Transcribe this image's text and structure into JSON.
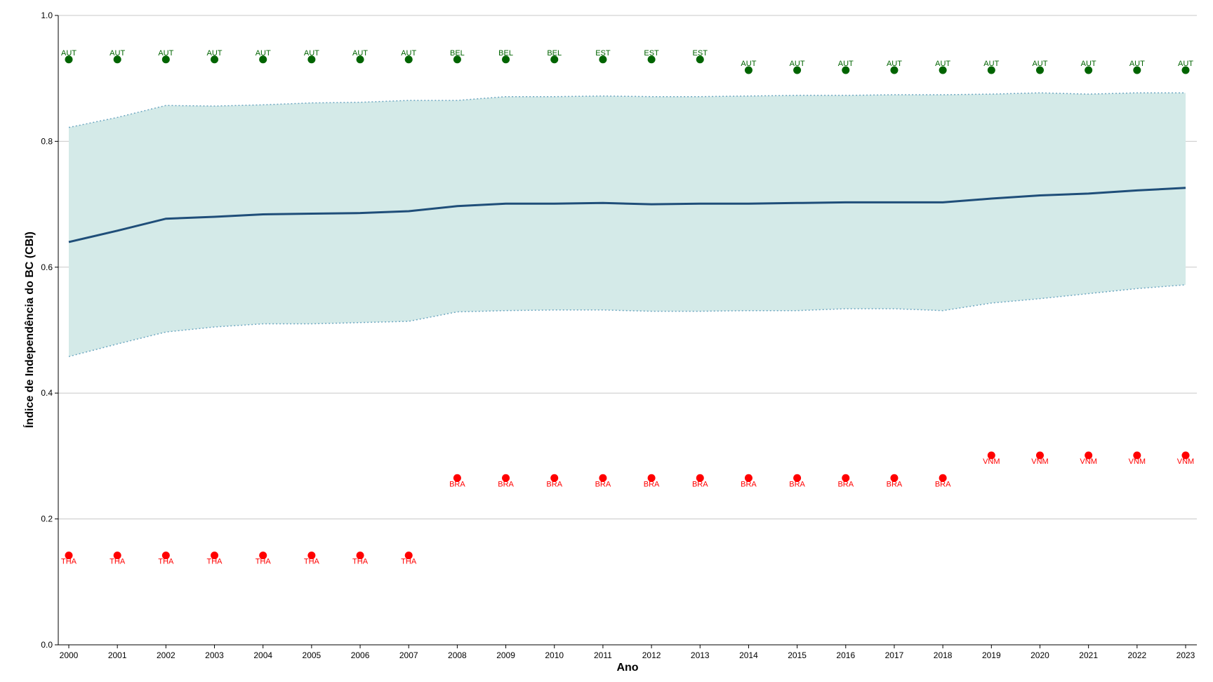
{
  "chart_data": {
    "type": "line",
    "title": "",
    "xlabel": "Ano",
    "ylabel": "Índice de Independência do BC (CBI)",
    "ylim": [
      0,
      1
    ],
    "yticks": [
      "0.0",
      "0.2",
      "0.4",
      "0.6",
      "0.8",
      "1.0"
    ],
    "grid": "horizontal",
    "x": [
      2000,
      2001,
      2002,
      2003,
      2004,
      2005,
      2006,
      2007,
      2008,
      2009,
      2010,
      2011,
      2012,
      2013,
      2014,
      2015,
      2016,
      2017,
      2018,
      2019,
      2020,
      2021,
      2022,
      2023
    ],
    "series": [
      {
        "role": "mean",
        "values": [
          0.64,
          0.658,
          0.677,
          0.68,
          0.684,
          0.685,
          0.686,
          0.689,
          0.697,
          0.701,
          0.701,
          0.702,
          0.7,
          0.701,
          0.701,
          0.702,
          0.703,
          0.703,
          0.703,
          0.709,
          0.714,
          0.717,
          0.722,
          0.726
        ]
      },
      {
        "role": "band-upper",
        "values": [
          0.822,
          0.838,
          0.857,
          0.856,
          0.858,
          0.861,
          0.862,
          0.865,
          0.865,
          0.871,
          0.871,
          0.872,
          0.871,
          0.871,
          0.872,
          0.873,
          0.873,
          0.874,
          0.874,
          0.875,
          0.877,
          0.875,
          0.877,
          0.877
        ]
      },
      {
        "role": "band-lower",
        "values": [
          0.458,
          0.478,
          0.497,
          0.505,
          0.51,
          0.51,
          0.512,
          0.514,
          0.529,
          0.531,
          0.532,
          0.532,
          0.53,
          0.53,
          0.531,
          0.531,
          0.534,
          0.534,
          0.531,
          0.543,
          0.55,
          0.558,
          0.566,
          0.572
        ]
      },
      {
        "role": "max",
        "values": [
          0.93,
          0.93,
          0.93,
          0.93,
          0.93,
          0.93,
          0.93,
          0.93,
          0.93,
          0.93,
          0.93,
          0.93,
          0.93,
          0.93,
          0.913,
          0.913,
          0.913,
          0.913,
          0.913,
          0.913,
          0.913,
          0.913,
          0.913,
          0.913
        ],
        "labels": [
          "AUT",
          "AUT",
          "AUT",
          "AUT",
          "AUT",
          "AUT",
          "AUT",
          "AUT",
          "BEL",
          "BEL",
          "BEL",
          "EST",
          "EST",
          "EST",
          "AUT",
          "AUT",
          "AUT",
          "AUT",
          "AUT",
          "AUT",
          "AUT",
          "AUT",
          "AUT",
          "AUT"
        ]
      },
      {
        "role": "min",
        "values": [
          0.142,
          0.142,
          0.142,
          0.142,
          0.142,
          0.142,
          0.142,
          0.142,
          0.265,
          0.265,
          0.265,
          0.265,
          0.265,
          0.265,
          0.265,
          0.265,
          0.265,
          0.265,
          0.265,
          0.301,
          0.301,
          0.301,
          0.301,
          0.301
        ],
        "labels": [
          "THA",
          "THA",
          "THA",
          "THA",
          "THA",
          "THA",
          "THA",
          "THA",
          "BRA",
          "BRA",
          "BRA",
          "BRA",
          "BRA",
          "BRA",
          "BRA",
          "BRA",
          "BRA",
          "BRA",
          "BRA",
          "VNM",
          "VNM",
          "VNM",
          "VNM",
          "VNM"
        ]
      }
    ],
    "colors": {
      "band_fill": "#d4eae8",
      "band_edge": "#6fa8c2",
      "mean_line": "#1f4e79",
      "max_points": "#006400",
      "min_points": "#ff0000",
      "grid": "#c8c8c8",
      "axis": "#000000"
    }
  }
}
